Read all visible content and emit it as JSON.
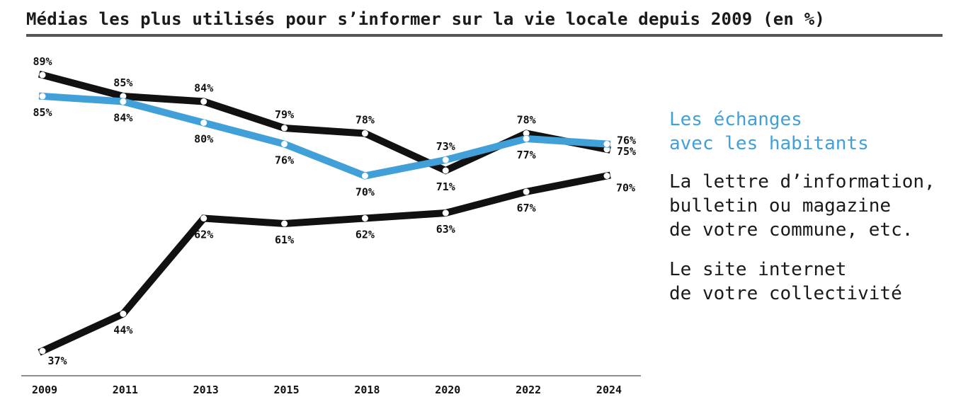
{
  "title": "Médias les plus utilisés pour s’informer sur la vie locale depuis 2009 (en %)",
  "colors": {
    "blue": "#42a0d8",
    "black": "#111111",
    "title_rule": "#55565a",
    "axis": "#8f8f8f",
    "label_text": "#111111"
  },
  "chart_data": {
    "type": "line",
    "title": "Médias les plus utilisés pour s’informer sur la vie locale depuis 2009 (en %)",
    "xlabel": "",
    "ylabel": "",
    "categories": [
      "2009",
      "2011",
      "2013",
      "2015",
      "2018",
      "2020",
      "2022",
      "2024"
    ],
    "series": [
      {
        "name": "Les échanges avec les habitants",
        "color_key": "blue",
        "z": 2,
        "values": [
          85,
          84,
          80,
          76,
          70,
          73,
          77,
          76
        ],
        "label_positions": [
          "below",
          "below",
          "below",
          "below",
          "below",
          "above",
          "below",
          "right-up"
        ]
      },
      {
        "name": "La lettre d’information, bulletin ou magazine de votre commune, etc.",
        "color_key": "black",
        "z": 1,
        "values": [
          89,
          85,
          84,
          79,
          78,
          71,
          78,
          75
        ],
        "label_positions": [
          "above",
          "above",
          "above",
          "above",
          "above",
          "below",
          "above",
          "right"
        ]
      },
      {
        "name": "Le site internet de votre collectivité",
        "color_key": "black",
        "z": 1,
        "values": [
          37,
          44,
          62,
          61,
          62,
          63,
          67,
          70
        ],
        "label_positions": [
          "below-right",
          "below",
          "below",
          "below",
          "below",
          "below",
          "below",
          "right-below"
        ]
      }
    ],
    "value_suffix": "%",
    "ylim": [
      30,
      95
    ],
    "grid": false,
    "x_axis_line": true,
    "legend_position": "right"
  },
  "legend": {
    "echanges": {
      "lines": [
        "Les échanges",
        "avec les habitants"
      ]
    },
    "lettre": {
      "lines": [
        "La lettre d’information,",
        "bulletin ou magazine",
        "de votre commune, etc."
      ]
    },
    "site": {
      "lines": [
        "Le site internet",
        "de votre collectivité"
      ]
    }
  }
}
